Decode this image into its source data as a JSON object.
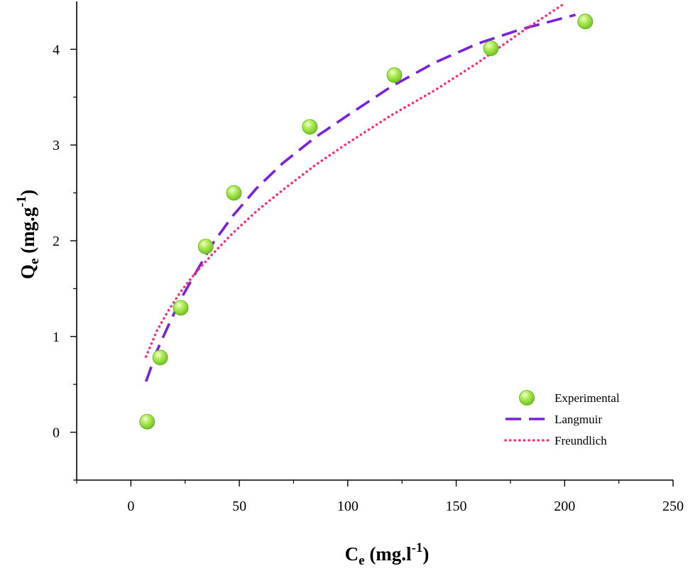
{
  "chart_data": {
    "type": "scatter",
    "xlabel": {
      "main": "C",
      "sub": "e",
      "rest": " (mg.l",
      "sup": "-1",
      "close": ")"
    },
    "ylabel": {
      "main": "Q",
      "sub": "e",
      "rest": " (mg.g",
      "sup": "-1",
      "close": ")"
    },
    "xlim": [
      -25,
      250
    ],
    "ylim": [
      -0.5,
      4.5
    ],
    "xticks": [
      0,
      50,
      100,
      150,
      200,
      250
    ],
    "xticks_minor": [
      -25,
      25,
      75,
      125,
      175,
      225
    ],
    "yticks": [
      0,
      1,
      2,
      3,
      4
    ],
    "yticks_minor": [
      -0.5,
      0.5,
      1.5,
      2.5,
      3.5
    ],
    "grid": false,
    "legend_position": "bottom-right",
    "series": [
      {
        "name": "Experimental",
        "kind": "points",
        "color": "#8fe03a",
        "x": [
          7.5,
          13.5,
          23,
          34.5,
          47.5,
          82.5,
          121.5,
          166,
          209.5
        ],
        "y": [
          0.11,
          0.78,
          1.3,
          1.94,
          2.5,
          3.19,
          3.73,
          4.01,
          4.29
        ]
      },
      {
        "name": "Langmuir",
        "kind": "dashed-line",
        "color": "#7a1fe0",
        "x": [
          7,
          12,
          17,
          23,
          30,
          38,
          47,
          58,
          70,
          85,
          100,
          120,
          140,
          160,
          180,
          200,
          205
        ],
        "y": [
          0.53,
          0.85,
          1.1,
          1.39,
          1.67,
          1.98,
          2.26,
          2.55,
          2.81,
          3.08,
          3.31,
          3.61,
          3.86,
          4.06,
          4.21,
          4.33,
          4.36
        ]
      },
      {
        "name": "Freundlich",
        "kind": "dotted-line",
        "color": "#ff2a7a",
        "x": [
          7,
          12,
          17,
          23,
          30,
          38,
          47,
          58,
          70,
          85,
          100,
          120,
          140,
          160,
          180,
          200
        ],
        "y": [
          0.79,
          1.06,
          1.26,
          1.47,
          1.67,
          1.87,
          2.08,
          2.31,
          2.53,
          2.79,
          3.02,
          3.31,
          3.57,
          3.86,
          4.18,
          4.48
        ]
      }
    ]
  }
}
